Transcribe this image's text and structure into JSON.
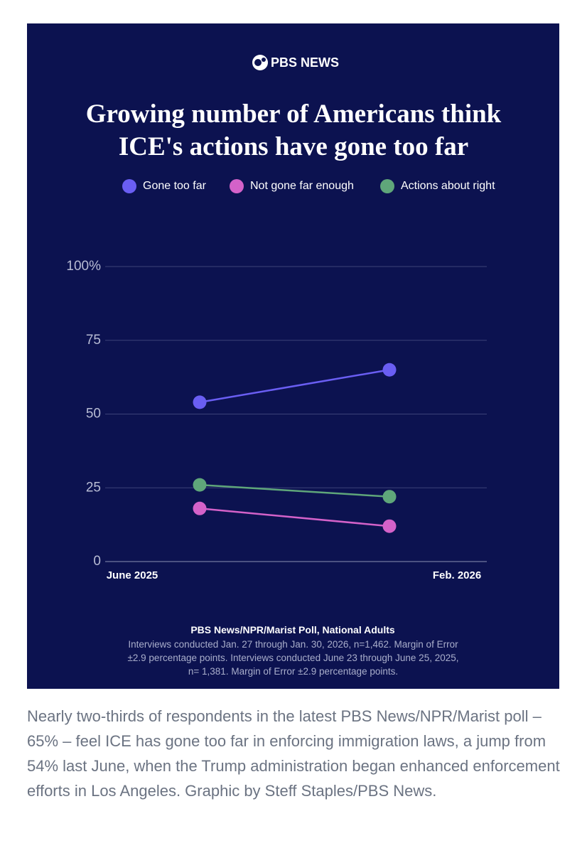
{
  "logo": "PBS NEWS",
  "chart_data": {
    "type": "line",
    "title": "Growing number of Americans think ICE's actions have gone too far",
    "categories": [
      "June 2025",
      "Feb. 2026"
    ],
    "series": [
      {
        "name": "Gone too far",
        "color": "#6a5ef3",
        "values": [
          54,
          65
        ]
      },
      {
        "name": "Not gone far enough",
        "color": "#d462c9",
        "values": [
          18,
          12
        ]
      },
      {
        "name": "Actions about right",
        "color": "#5fa67a",
        "values": [
          26,
          22
        ]
      }
    ],
    "ylim": [
      0,
      100
    ],
    "yticks": [
      0,
      25,
      50,
      75,
      {
        "value": 100,
        "label": "100%"
      }
    ],
    "grid": true,
    "source": "PBS News/NPR/Marist Poll, National Adults",
    "note": "Interviews conducted Jan. 27 through Jan. 30, 2026, n=1,462. Margin of Error ±2.9 percentage points.  Interviews conducted June 23 through June 25, 2025, n= 1,381. Margin of Error  ±2.9 percentage points."
  },
  "caption": "Nearly two-thirds of respondents in the latest PBS News/NPR/Marist poll – 65% – feel ICE has gone too far in enforcing immigration laws, a jump from 54% last June, when the Trump administration began enhanced enforcement efforts in Los Angeles. Graphic by Steff Staples/PBS News."
}
